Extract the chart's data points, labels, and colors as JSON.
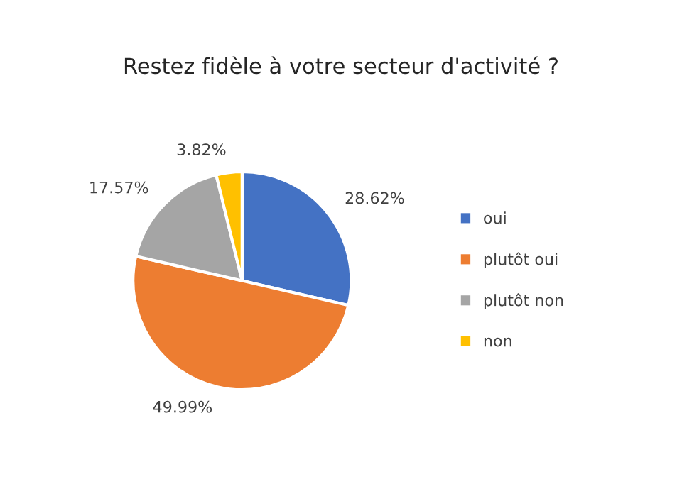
{
  "chart_data": {
    "type": "pie",
    "title": "Restez fidèle à votre secteur d'activité ?",
    "categories": [
      "oui",
      "plutôt oui",
      "plutôt non",
      "non"
    ],
    "values": [
      28.62,
      49.99,
      17.57,
      3.82
    ],
    "value_labels": [
      "28.62%",
      "49.99%",
      "17.57%",
      "3.82%"
    ],
    "colors": [
      "#4472c4",
      "#ed7d31",
      "#a5a5a5",
      "#ffc000"
    ],
    "legend": "right"
  }
}
